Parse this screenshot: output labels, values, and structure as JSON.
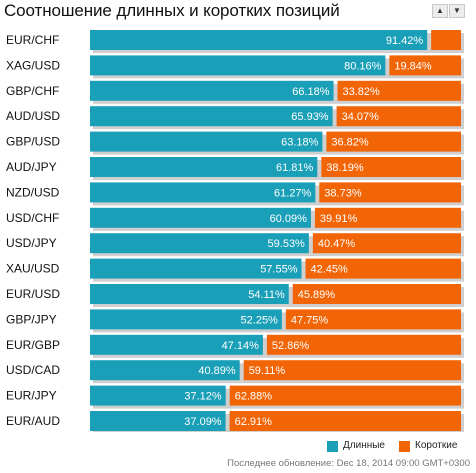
{
  "header": {
    "title": "Соотношение длинных и коротких позиций",
    "sort_up_icon": "triangle-up",
    "sort_down_icon": "triangle-down"
  },
  "colors": {
    "long": "#1a9fb8",
    "short": "#f26507",
    "track": "#cfcfcf"
  },
  "chart_data": {
    "type": "bar",
    "orientation": "horizontal",
    "stacked": true,
    "percent": true,
    "categories": [
      "EUR/CHF",
      "XAG/USD",
      "GBP/CHF",
      "AUD/USD",
      "GBP/USD",
      "AUD/JPY",
      "NZD/USD",
      "USD/CHF",
      "USD/JPY",
      "XAU/USD",
      "EUR/USD",
      "GBP/JPY",
      "EUR/GBP",
      "USD/CAD",
      "EUR/JPY",
      "EUR/AUD"
    ],
    "series": [
      {
        "name": "Длинные",
        "values": [
          91.42,
          80.16,
          66.18,
          65.93,
          63.18,
          61.81,
          61.27,
          60.09,
          59.53,
          57.55,
          54.11,
          52.25,
          47.14,
          40.89,
          37.12,
          37.09
        ]
      },
      {
        "name": "Короткие",
        "values": [
          8.58,
          19.84,
          33.82,
          34.07,
          36.82,
          38.19,
          38.73,
          39.91,
          40.47,
          42.45,
          45.89,
          47.75,
          52.86,
          59.11,
          62.88,
          62.91
        ]
      }
    ],
    "long_labels": [
      "91.42%",
      "80.16%",
      "66.18%",
      "65.93%",
      "63.18%",
      "61.81%",
      "61.27%",
      "60.09%",
      "59.53%",
      "57.55%",
      "54.11%",
      "52.25%",
      "47.14%",
      "40.89%",
      "37.12%",
      "37.09%"
    ],
    "short_labels": [
      "",
      "19.84%",
      "33.82%",
      "34.07%",
      "36.82%",
      "38.19%",
      "38.73%",
      "39.91%",
      "40.47%",
      "42.45%",
      "45.89%",
      "47.75%",
      "52.86%",
      "59.11%",
      "62.88%",
      "62.91%"
    ],
    "xlim": [
      0,
      100
    ],
    "legend_position": "bottom-right",
    "grid": false
  },
  "legend": {
    "long_label": "Длинные",
    "short_label": "Короткие"
  },
  "footer": {
    "updated": "Последнее обновление: Dec 18, 2014 09:00 GMT+0300"
  }
}
